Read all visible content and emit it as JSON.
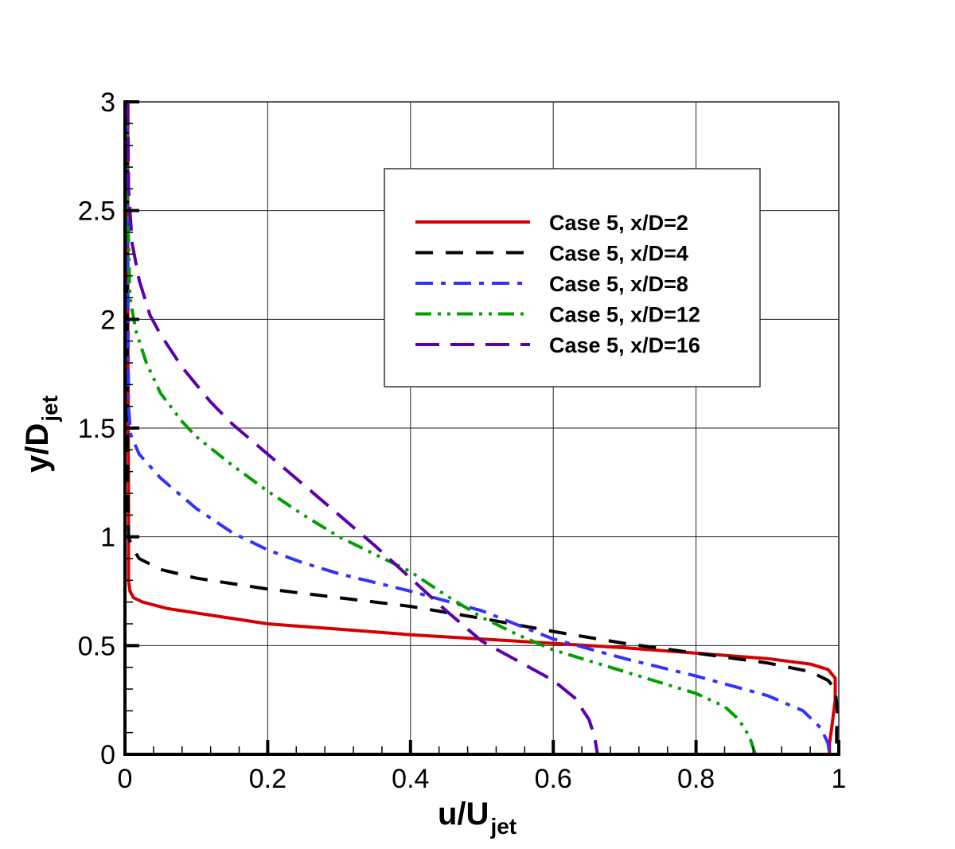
{
  "chart_data": {
    "type": "line",
    "title": "",
    "xlabel": "u/U",
    "xlabel_sub": "jet",
    "ylabel": "y/D",
    "ylabel_sub": "jet",
    "xlim": [
      0,
      1
    ],
    "ylim": [
      0,
      3
    ],
    "grid": true,
    "legend_position": "upper-right-inset",
    "x_ticks": [
      0,
      0.2,
      0.4,
      0.6,
      0.8,
      1
    ],
    "x_tick_labels": [
      "0",
      "0.2",
      "0.4",
      "0.6",
      "0.8",
      "1"
    ],
    "y_ticks": [
      0,
      0.5,
      1,
      1.5,
      2,
      2.5,
      3
    ],
    "y_tick_labels": [
      "0",
      "0.5",
      "1",
      "1.5",
      "2",
      "2.5",
      "3"
    ],
    "series": [
      {
        "name": "Case 5, x/D=2",
        "color": "#d40000",
        "dash": "solid",
        "points": [
          [
            0.004,
            3.0
          ],
          [
            0.004,
            2.0
          ],
          [
            0.005,
            1.2
          ],
          [
            0.005,
            0.8
          ],
          [
            0.007,
            0.75
          ],
          [
            0.012,
            0.72
          ],
          [
            0.025,
            0.7
          ],
          [
            0.06,
            0.67
          ],
          [
            0.12,
            0.64
          ],
          [
            0.2,
            0.6
          ],
          [
            0.3,
            0.575
          ],
          [
            0.4,
            0.55
          ],
          [
            0.5,
            0.53
          ],
          [
            0.6,
            0.51
          ],
          [
            0.7,
            0.49
          ],
          [
            0.8,
            0.465
          ],
          [
            0.9,
            0.44
          ],
          [
            0.96,
            0.415
          ],
          [
            0.985,
            0.39
          ],
          [
            0.995,
            0.35
          ],
          [
            0.995,
            0.25
          ],
          [
            0.99,
            0.12
          ],
          [
            0.987,
            0.05
          ],
          [
            0.987,
            0.0
          ]
        ]
      },
      {
        "name": "Case 5, x/D=4",
        "color": "#000000",
        "dash": "dashed",
        "points": [
          [
            0.003,
            3.0
          ],
          [
            0.003,
            2.0
          ],
          [
            0.004,
            1.2
          ],
          [
            0.005,
            1.0
          ],
          [
            0.01,
            0.95
          ],
          [
            0.02,
            0.9
          ],
          [
            0.05,
            0.85
          ],
          [
            0.1,
            0.81
          ],
          [
            0.2,
            0.76
          ],
          [
            0.3,
            0.72
          ],
          [
            0.4,
            0.68
          ],
          [
            0.5,
            0.625
          ],
          [
            0.6,
            0.565
          ],
          [
            0.7,
            0.51
          ],
          [
            0.8,
            0.465
          ],
          [
            0.9,
            0.42
          ],
          [
            0.96,
            0.38
          ],
          [
            0.985,
            0.34
          ],
          [
            0.995,
            0.3
          ],
          [
            0.998,
            0.2
          ],
          [
            0.997,
            0.1
          ],
          [
            0.997,
            0.0
          ]
        ]
      },
      {
        "name": "Case 5, x/D=8",
        "color": "#3333ff",
        "dash": "dashdot",
        "points": [
          [
            0.003,
            3.0
          ],
          [
            0.004,
            2.2
          ],
          [
            0.005,
            1.6
          ],
          [
            0.008,
            1.47
          ],
          [
            0.02,
            1.38
          ],
          [
            0.05,
            1.27
          ],
          [
            0.1,
            1.13
          ],
          [
            0.15,
            1.02
          ],
          [
            0.2,
            0.94
          ],
          [
            0.25,
            0.88
          ],
          [
            0.3,
            0.83
          ],
          [
            0.4,
            0.75
          ],
          [
            0.5,
            0.66
          ],
          [
            0.6,
            0.53
          ],
          [
            0.7,
            0.44
          ],
          [
            0.8,
            0.36
          ],
          [
            0.9,
            0.27
          ],
          [
            0.95,
            0.2
          ],
          [
            0.975,
            0.12
          ],
          [
            0.985,
            0.05
          ],
          [
            0.987,
            0.0
          ]
        ]
      },
      {
        "name": "Case 5, x/D=12",
        "color": "#00a000",
        "dash": "dashdotdot",
        "points": [
          [
            0.003,
            3.0
          ],
          [
            0.004,
            2.5
          ],
          [
            0.007,
            2.1
          ],
          [
            0.015,
            1.95
          ],
          [
            0.03,
            1.8
          ],
          [
            0.05,
            1.66
          ],
          [
            0.08,
            1.53
          ],
          [
            0.1,
            1.46
          ],
          [
            0.15,
            1.33
          ],
          [
            0.2,
            1.21
          ],
          [
            0.25,
            1.1
          ],
          [
            0.3,
            1.0
          ],
          [
            0.35,
            0.92
          ],
          [
            0.4,
            0.84
          ],
          [
            0.45,
            0.73
          ],
          [
            0.5,
            0.63
          ],
          [
            0.55,
            0.55
          ],
          [
            0.6,
            0.48
          ],
          [
            0.7,
            0.38
          ],
          [
            0.8,
            0.28
          ],
          [
            0.84,
            0.22
          ],
          [
            0.86,
            0.16
          ],
          [
            0.875,
            0.08
          ],
          [
            0.883,
            0.0
          ]
        ]
      },
      {
        "name": "Case 5, x/D=16",
        "color": "#5a00b0",
        "dash": "longdash",
        "points": [
          [
            0.004,
            3.0
          ],
          [
            0.005,
            2.6
          ],
          [
            0.01,
            2.35
          ],
          [
            0.02,
            2.18
          ],
          [
            0.035,
            2.02
          ],
          [
            0.05,
            1.93
          ],
          [
            0.08,
            1.78
          ],
          [
            0.12,
            1.62
          ],
          [
            0.15,
            1.52
          ],
          [
            0.2,
            1.38
          ],
          [
            0.25,
            1.24
          ],
          [
            0.3,
            1.1
          ],
          [
            0.35,
            0.96
          ],
          [
            0.4,
            0.81
          ],
          [
            0.45,
            0.66
          ],
          [
            0.5,
            0.52
          ],
          [
            0.55,
            0.43
          ],
          [
            0.6,
            0.34
          ],
          [
            0.63,
            0.26
          ],
          [
            0.65,
            0.16
          ],
          [
            0.658,
            0.08
          ],
          [
            0.662,
            0.0
          ]
        ]
      }
    ]
  }
}
